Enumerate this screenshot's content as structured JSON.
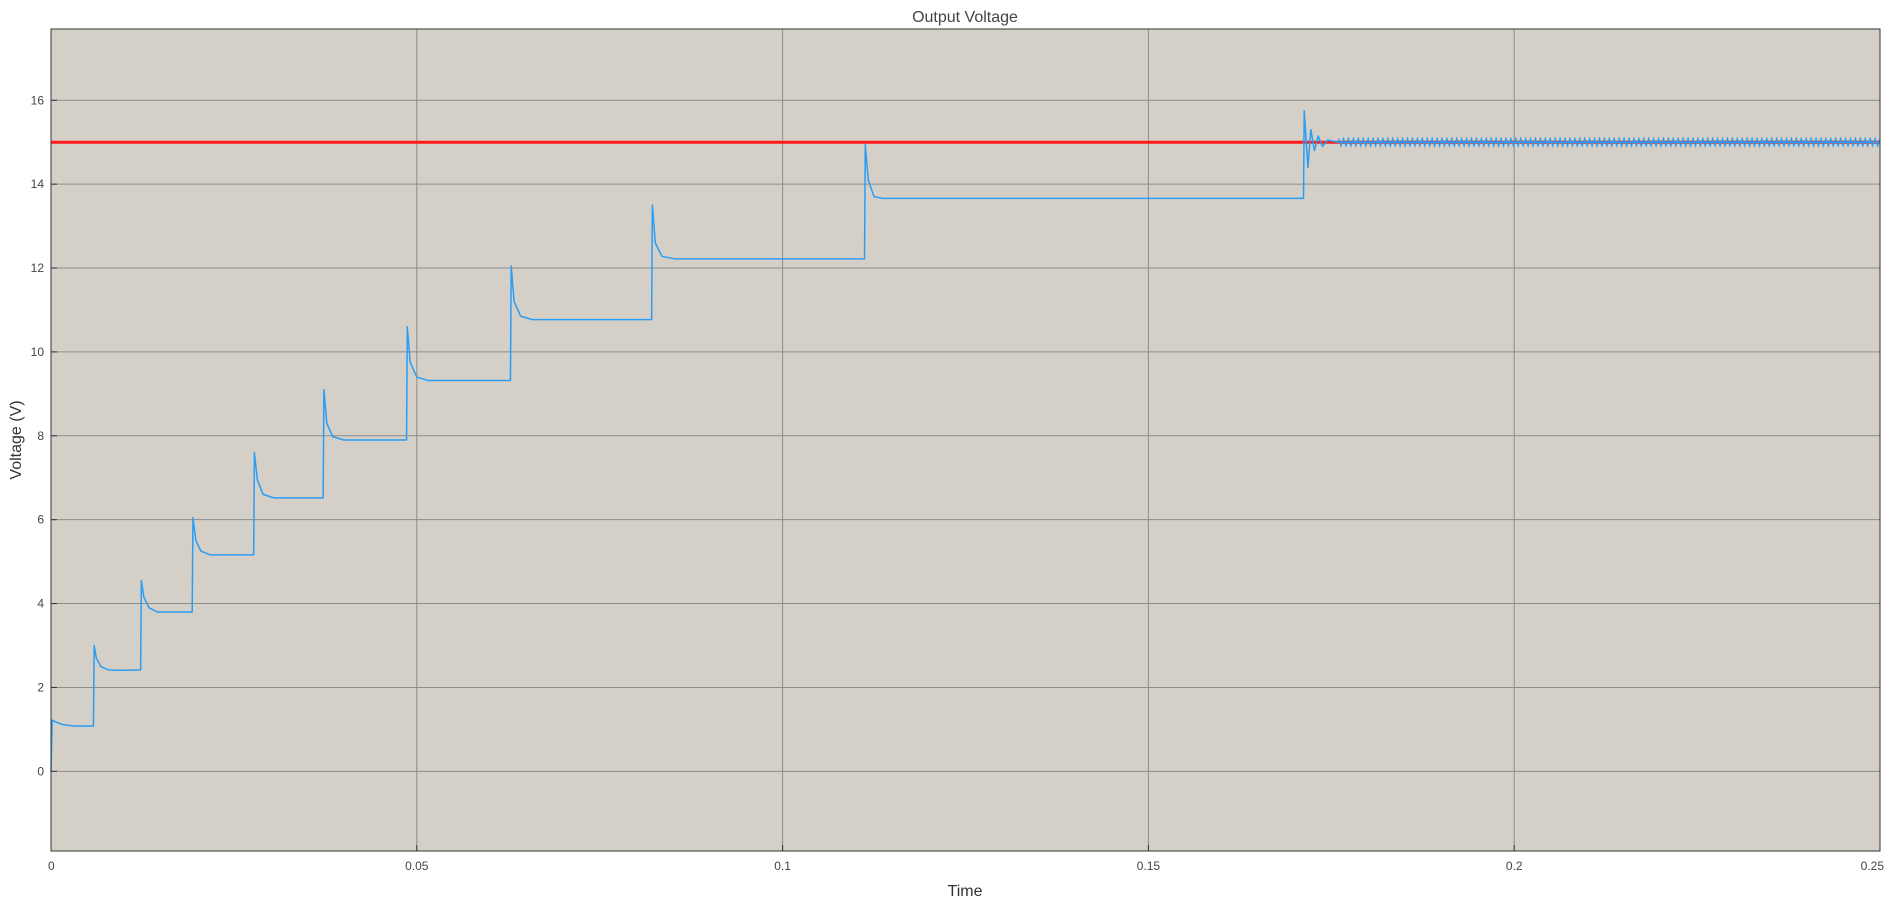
{
  "chart_data": {
    "type": "line",
    "title": "Output Voltage",
    "xlabel": "Time",
    "ylabel": "Voltage (V)",
    "xlim": [
      0,
      0.25
    ],
    "ylim": [
      -1.9,
      17.7
    ],
    "x_ticks": [
      0,
      0.05,
      0.1,
      0.15,
      0.2,
      0.25
    ],
    "x_tick_labels": [
      "0",
      "0.05",
      "0.1",
      "0.15",
      "0.2",
      "0.25"
    ],
    "y_ticks": [
      0,
      2,
      4,
      6,
      8,
      10,
      12,
      14,
      16
    ],
    "y_tick_labels": [
      "0",
      "2",
      "4",
      "6",
      "8",
      "10",
      "12",
      "14",
      "16"
    ],
    "grid": true,
    "legend": "none",
    "colors": {
      "plot_background": "#d4d0c8",
      "grid": "#8c8c8c",
      "reference": "#ff1a1a",
      "output": "#2a9df4"
    },
    "series": [
      {
        "role": "reference",
        "x": [
          0,
          0.25
        ],
        "values": [
          15,
          15
        ]
      },
      {
        "role": "output",
        "x": [
          0,
          0.00015,
          0.0006,
          0.0015,
          0.003,
          0.0058,
          0.0059,
          0.0062,
          0.0068,
          0.0078,
          0.009,
          0.0105,
          0.01225,
          0.01235,
          0.0127,
          0.0134,
          0.0145,
          0.016,
          0.0193,
          0.0194,
          0.0198,
          0.0205,
          0.0218,
          0.0235,
          0.0277,
          0.0278,
          0.0282,
          0.029,
          0.0305,
          0.0325,
          0.0372,
          0.0373,
          0.0377,
          0.0385,
          0.04,
          0.0425,
          0.0486,
          0.0487,
          0.0491,
          0.05,
          0.0515,
          0.054,
          0.0628,
          0.0629,
          0.0633,
          0.0642,
          0.0658,
          0.0685,
          0.0821,
          0.0822,
          0.0826,
          0.0835,
          0.0852,
          0.088,
          0.1112,
          0.1113,
          0.1117,
          0.1125,
          0.1138,
          0.1155,
          0.1712,
          0.1713,
          0.1718,
          0.1722,
          0.1727,
          0.1732,
          0.1738,
          0.1745,
          0.176,
          0.25
        ],
        "values": [
          0,
          1.22,
          1.18,
          1.12,
          1.08,
          1.08,
          3.0,
          2.7,
          2.5,
          2.42,
          2.41,
          2.41,
          2.42,
          4.55,
          4.15,
          3.9,
          3.8,
          3.8,
          3.8,
          6.05,
          5.5,
          5.25,
          5.16,
          5.16,
          5.16,
          7.6,
          6.95,
          6.6,
          6.52,
          6.52,
          6.52,
          9.1,
          8.3,
          7.98,
          7.9,
          7.9,
          7.9,
          10.6,
          9.75,
          9.4,
          9.32,
          9.32,
          9.32,
          12.05,
          11.2,
          10.85,
          10.77,
          10.77,
          10.77,
          13.5,
          12.6,
          12.28,
          12.22,
          12.22,
          12.22,
          14.95,
          14.1,
          13.7,
          13.66,
          13.66,
          13.66,
          15.75,
          14.4,
          15.3,
          14.8,
          15.15,
          14.9,
          15.05,
          15.0,
          15.0
        ]
      }
    ]
  }
}
